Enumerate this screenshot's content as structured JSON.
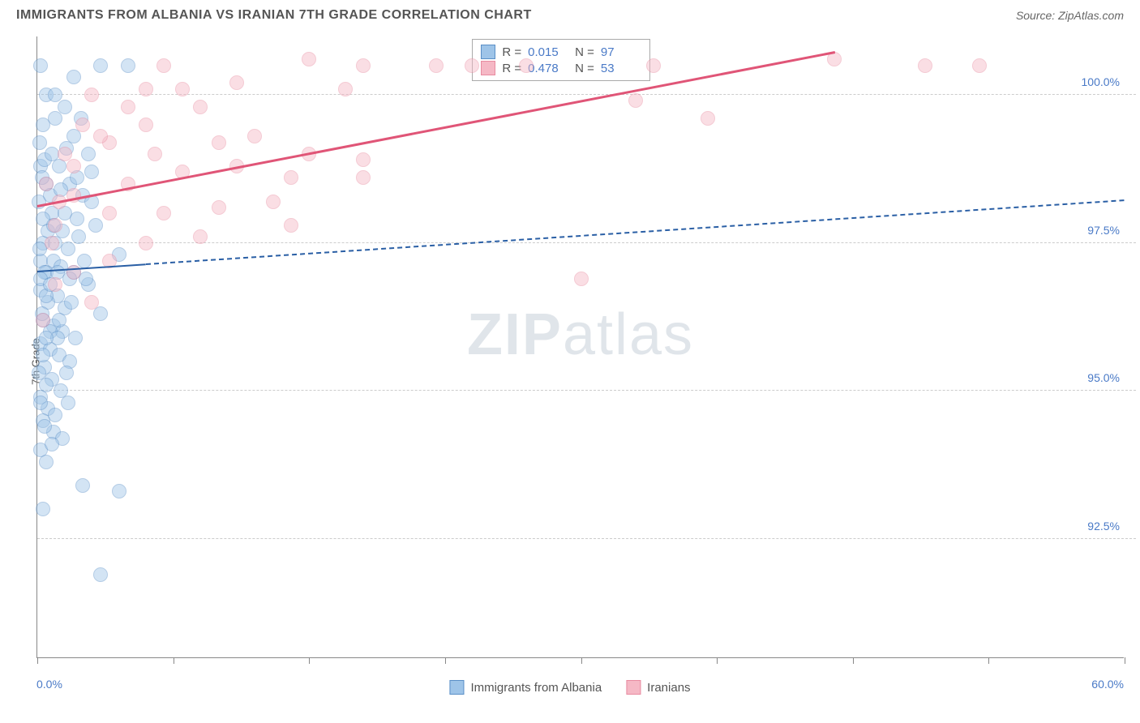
{
  "header": {
    "title": "IMMIGRANTS FROM ALBANIA VS IRANIAN 7TH GRADE CORRELATION CHART",
    "source": "Source: ZipAtlas.com"
  },
  "chart": {
    "type": "scatter",
    "ylabel": "7th Grade",
    "xlim_min_label": "0.0%",
    "xlim_max_label": "60.0%",
    "xlim": [
      0,
      60
    ],
    "ylim": [
      90.5,
      101
    ],
    "yticks": [
      {
        "v": 92.5,
        "label": "92.5%"
      },
      {
        "v": 95.0,
        "label": "95.0%"
      },
      {
        "v": 97.5,
        "label": "97.5%"
      },
      {
        "v": 100.0,
        "label": "100.0%"
      }
    ],
    "xticks": [
      0,
      7.5,
      15,
      22.5,
      30,
      37.5,
      45,
      52.5,
      60
    ],
    "background_color": "#ffffff",
    "grid_color": "#cccccc",
    "marker_radius": 9,
    "marker_opacity": 0.45,
    "series": [
      {
        "name": "Immigrants from Albania",
        "color_fill": "#9ec4e8",
        "color_stroke": "#5a8fc7",
        "R": "0.015",
        "N": "97",
        "trend": {
          "x1": 0,
          "y1": 97.0,
          "x2": 60,
          "y2": 98.2,
          "solid_until_x": 6,
          "color": "#2a5fa5",
          "width": 2.5,
          "dash": true
        },
        "points": [
          [
            0.2,
            100.5
          ],
          [
            3.5,
            100.5
          ],
          [
            5,
            100.5
          ],
          [
            0.5,
            100.0
          ],
          [
            1.0,
            100.0
          ],
          [
            1.5,
            99.8
          ],
          [
            0.3,
            99.5
          ],
          [
            2.0,
            99.3
          ],
          [
            2.8,
            99.0
          ],
          [
            0.2,
            98.8
          ],
          [
            1.2,
            98.8
          ],
          [
            3.0,
            98.7
          ],
          [
            0.5,
            98.5
          ],
          [
            1.8,
            98.5
          ],
          [
            2.5,
            98.3
          ],
          [
            0.1,
            98.2
          ],
          [
            0.8,
            98.0
          ],
          [
            1.5,
            98.0
          ],
          [
            2.2,
            97.9
          ],
          [
            3.2,
            97.8
          ],
          [
            0.3,
            97.5
          ],
          [
            1.0,
            97.5
          ],
          [
            1.7,
            97.4
          ],
          [
            4.5,
            97.3
          ],
          [
            0.2,
            97.2
          ],
          [
            0.9,
            97.2
          ],
          [
            1.3,
            97.1
          ],
          [
            2.0,
            97.0
          ],
          [
            0.5,
            97.0
          ],
          [
            1.8,
            96.9
          ],
          [
            2.8,
            96.8
          ],
          [
            0.2,
            96.7
          ],
          [
            1.1,
            96.6
          ],
          [
            0.6,
            96.5
          ],
          [
            1.5,
            96.4
          ],
          [
            3.5,
            96.3
          ],
          [
            0.3,
            96.2
          ],
          [
            0.9,
            96.1
          ],
          [
            1.4,
            96.0
          ],
          [
            2.1,
            95.9
          ],
          [
            0.2,
            95.8
          ],
          [
            0.7,
            95.7
          ],
          [
            1.2,
            95.6
          ],
          [
            1.8,
            95.5
          ],
          [
            0.4,
            95.4
          ],
          [
            0.1,
            95.3
          ],
          [
            0.8,
            95.2
          ],
          [
            1.3,
            95.0
          ],
          [
            0.2,
            94.9
          ],
          [
            0.6,
            94.7
          ],
          [
            1.0,
            94.6
          ],
          [
            0.3,
            94.5
          ],
          [
            0.9,
            94.3
          ],
          [
            1.4,
            94.2
          ],
          [
            0.2,
            94.0
          ],
          [
            0.5,
            93.8
          ],
          [
            2.5,
            93.4
          ],
          [
            4.5,
            93.3
          ],
          [
            0.3,
            93.0
          ],
          [
            3.5,
            91.9
          ],
          [
            0.15,
            99.2
          ],
          [
            0.4,
            98.9
          ],
          [
            0.25,
            98.6
          ],
          [
            0.7,
            98.3
          ],
          [
            0.3,
            97.9
          ],
          [
            0.6,
            97.7
          ],
          [
            0.15,
            97.4
          ],
          [
            0.4,
            97.0
          ],
          [
            0.2,
            96.9
          ],
          [
            0.5,
            96.6
          ],
          [
            0.25,
            96.3
          ],
          [
            0.7,
            96.0
          ],
          [
            0.3,
            95.6
          ],
          [
            0.5,
            95.1
          ],
          [
            0.2,
            94.8
          ],
          [
            0.4,
            94.4
          ],
          [
            1.0,
            99.6
          ],
          [
            1.6,
            99.1
          ],
          [
            2.2,
            98.6
          ],
          [
            1.4,
            97.7
          ],
          [
            2.6,
            97.2
          ],
          [
            1.9,
            96.5
          ],
          [
            1.1,
            95.9
          ],
          [
            1.6,
            95.3
          ],
          [
            2.0,
            100.3
          ],
          [
            2.4,
            99.6
          ],
          [
            3.0,
            98.2
          ],
          [
            2.3,
            97.6
          ],
          [
            2.7,
            96.9
          ],
          [
            1.7,
            94.8
          ],
          [
            0.8,
            99.0
          ],
          [
            1.3,
            98.4
          ],
          [
            0.9,
            97.8
          ],
          [
            1.1,
            97.0
          ],
          [
            0.7,
            96.8
          ],
          [
            1.2,
            96.2
          ],
          [
            0.5,
            95.9
          ],
          [
            0.8,
            94.1
          ]
        ]
      },
      {
        "name": "Iranians",
        "color_fill": "#f5b8c5",
        "color_stroke": "#e88ba0",
        "R": "0.478",
        "N": "53",
        "trend": {
          "x1": 0,
          "y1": 98.1,
          "x2": 44,
          "y2": 100.7,
          "solid_until_x": 44,
          "color": "#e05577",
          "width": 3,
          "dash": false
        },
        "points": [
          [
            7,
            100.5
          ],
          [
            15,
            100.6
          ],
          [
            18,
            100.5
          ],
          [
            22,
            100.5
          ],
          [
            24,
            100.5
          ],
          [
            27,
            100.5
          ],
          [
            34,
            100.5
          ],
          [
            44,
            100.6
          ],
          [
            49,
            100.5
          ],
          [
            52,
            100.5
          ],
          [
            6,
            100.1
          ],
          [
            8,
            100.1
          ],
          [
            17,
            100.1
          ],
          [
            33,
            99.9
          ],
          [
            37,
            99.6
          ],
          [
            4,
            99.2
          ],
          [
            10,
            99.2
          ],
          [
            6,
            99.5
          ],
          [
            11,
            98.8
          ],
          [
            15,
            99.0
          ],
          [
            18,
            98.9
          ],
          [
            14,
            98.6
          ],
          [
            18,
            98.6
          ],
          [
            2,
            98.3
          ],
          [
            4,
            98.0
          ],
          [
            7,
            98.0
          ],
          [
            10,
            98.1
          ],
          [
            14,
            97.8
          ],
          [
            6,
            97.5
          ],
          [
            9,
            97.6
          ],
          [
            2,
            97.0
          ],
          [
            4,
            97.2
          ],
          [
            1,
            96.8
          ],
          [
            3,
            96.5
          ],
          [
            1,
            97.8
          ],
          [
            0.5,
            98.5
          ],
          [
            1.5,
            99.0
          ],
          [
            2.5,
            99.5
          ],
          [
            3,
            100.0
          ],
          [
            5,
            99.8
          ],
          [
            8,
            98.7
          ],
          [
            12,
            99.3
          ],
          [
            30,
            96.9
          ],
          [
            0.3,
            96.2
          ],
          [
            0.8,
            97.5
          ],
          [
            1.2,
            98.2
          ],
          [
            2,
            98.8
          ],
          [
            3.5,
            99.3
          ],
          [
            5,
            98.5
          ],
          [
            6.5,
            99.0
          ],
          [
            9,
            99.8
          ],
          [
            11,
            100.2
          ],
          [
            13,
            98.2
          ]
        ]
      }
    ],
    "legend_bottom": [
      {
        "label": "Immigrants from Albania",
        "fill": "#9ec4e8",
        "stroke": "#5a8fc7"
      },
      {
        "label": "Iranians",
        "fill": "#f5b8c5",
        "stroke": "#e88ba0"
      }
    ],
    "watermark": {
      "part1": "ZIP",
      "part2": "atlas"
    }
  }
}
